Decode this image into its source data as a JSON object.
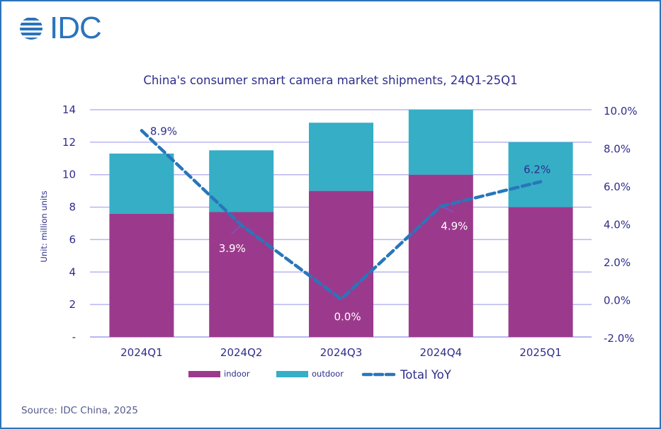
{
  "brand": {
    "logo_text": "IDC",
    "brand_color": "#2a74bc"
  },
  "source": "Source: IDC China, 2025",
  "chart_data": {
    "type": "bar",
    "stacked": true,
    "title": "China's consumer smart camera market shipments, 24Q1-25Q1",
    "xlabel": "",
    "ylabel": "Unit: million units",
    "y2label": "",
    "categories": [
      "2024Q1",
      "2024Q2",
      "2024Q3",
      "2024Q4",
      "2025Q1"
    ],
    "series": [
      {
        "name": "indoor",
        "type": "bar",
        "axis": "left",
        "color": "#9b3a8c",
        "values": [
          7.6,
          7.7,
          9.0,
          10.0,
          8.0
        ]
      },
      {
        "name": "outdoor",
        "type": "bar",
        "axis": "left",
        "color": "#35aec6",
        "values": [
          3.7,
          3.8,
          4.2,
          4.0,
          4.0
        ]
      },
      {
        "name": "Total YoY",
        "type": "line",
        "axis": "right",
        "style": "dashed",
        "color": "#2876bb",
        "values": [
          8.9,
          3.9,
          0.0,
          4.9,
          6.2
        ],
        "labels": [
          "8.9%",
          "3.9%",
          "0.0%",
          "4.9%",
          "6.2%"
        ]
      }
    ],
    "ylim": [
      0,
      14
    ],
    "y_ticks": [
      0,
      2,
      4,
      6,
      8,
      10,
      12,
      14
    ],
    "y_tick_labels": [
      "-",
      "2",
      "4",
      "6",
      "8",
      "10",
      "12",
      "14"
    ],
    "y2lim": [
      -2,
      10
    ],
    "y2_ticks": [
      -2,
      0,
      2,
      4,
      6,
      8,
      10
    ],
    "y2_tick_labels": [
      "-2.0%",
      "0.0%",
      "2.0%",
      "4.0%",
      "6.0%",
      "8.0%",
      "10.0%"
    ],
    "grid": true,
    "grid_color": "#b9b6ef",
    "legend": {
      "placement": "bottom",
      "entries": [
        "indoor",
        "outdoor",
        "Total YoY"
      ]
    }
  }
}
